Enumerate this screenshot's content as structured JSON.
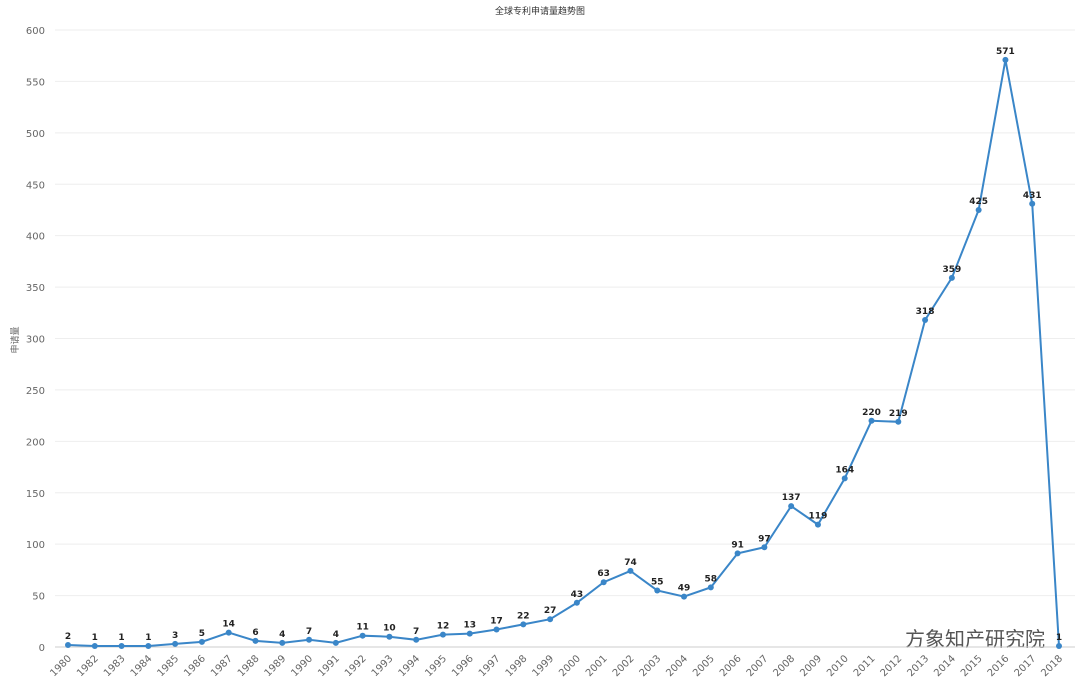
{
  "chart_data": {
    "type": "line",
    "title": "全球专利申请量趋势图",
    "y_label": "申请量",
    "categories": [
      "1980",
      "1982",
      "1983",
      "1984",
      "1985",
      "1986",
      "1987",
      "1988",
      "1989",
      "1990",
      "1991",
      "1992",
      "1993",
      "1994",
      "1995",
      "1996",
      "1997",
      "1998",
      "1999",
      "2000",
      "2001",
      "2002",
      "2003",
      "2004",
      "2005",
      "2006",
      "2007",
      "2008",
      "2009",
      "2010",
      "2011",
      "2012",
      "2013",
      "2014",
      "2015",
      "2016",
      "2017",
      "2018"
    ],
    "series": [
      {
        "name": "申请量",
        "color": "#3a86c8",
        "values": [
          2,
          1,
          1,
          1,
          3,
          5,
          14,
          6,
          4,
          7,
          4,
          11,
          10,
          7,
          12,
          13,
          17,
          22,
          27,
          43,
          63,
          74,
          55,
          49,
          58,
          91,
          97,
          137,
          119,
          164,
          220,
          219,
          318,
          359,
          425,
          571,
          431,
          1
        ]
      }
    ],
    "ylim": [
      0,
      600
    ],
    "yticks": [
      0,
      50,
      100,
      150,
      200,
      250,
      300,
      350,
      400,
      450,
      500,
      550,
      600
    ],
    "grid": true,
    "watermark": "方象知产研究院"
  }
}
